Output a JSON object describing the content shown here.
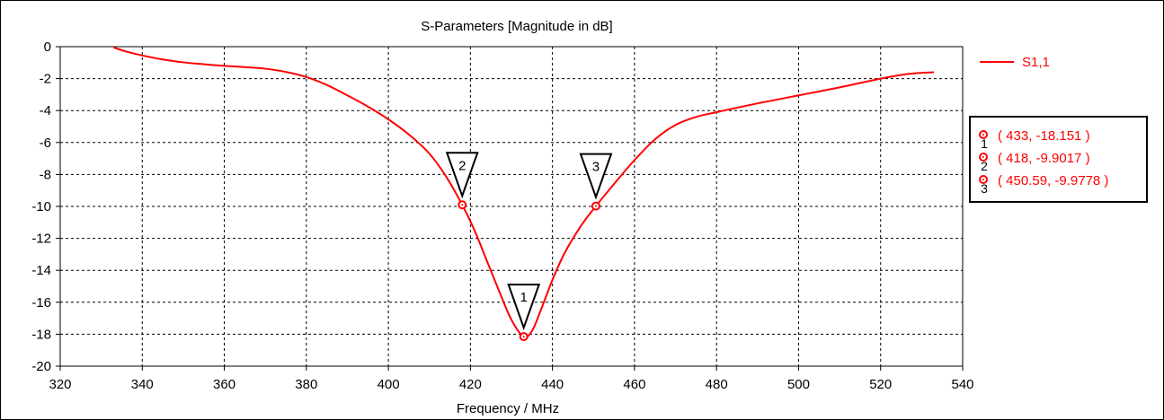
{
  "chart_data": {
    "type": "line",
    "title": "S-Parameters [Magnitude in dB]",
    "xlabel": "Frequency / MHz",
    "ylabel": "",
    "xlim": [
      320,
      540
    ],
    "ylim": [
      -20,
      0
    ],
    "x_ticks": [
      320,
      340,
      360,
      380,
      400,
      420,
      440,
      460,
      480,
      500,
      520,
      540
    ],
    "y_ticks": [
      0,
      -2,
      -4,
      -6,
      -8,
      -10,
      -12,
      -14,
      -16,
      -18,
      -20
    ],
    "grid": true,
    "legend_position": "right",
    "series": [
      {
        "name": "S1,1",
        "color": "#ff0000",
        "points": [
          [
            333,
            -0.05
          ],
          [
            336,
            -0.3
          ],
          [
            340,
            -0.55
          ],
          [
            345,
            -0.8
          ],
          [
            350,
            -0.98
          ],
          [
            355,
            -1.1
          ],
          [
            360,
            -1.2
          ],
          [
            365,
            -1.28
          ],
          [
            370,
            -1.38
          ],
          [
            375,
            -1.58
          ],
          [
            380,
            -1.9
          ],
          [
            385,
            -2.4
          ],
          [
            390,
            -3.05
          ],
          [
            395,
            -3.75
          ],
          [
            400,
            -4.55
          ],
          [
            405,
            -5.5
          ],
          [
            410,
            -6.7
          ],
          [
            414,
            -8.1
          ],
          [
            418,
            -9.9
          ],
          [
            421,
            -11.5
          ],
          [
            424,
            -13.4
          ],
          [
            427,
            -15.3
          ],
          [
            430,
            -17.1
          ],
          [
            433,
            -18.15
          ],
          [
            435,
            -17.8
          ],
          [
            437,
            -16.6
          ],
          [
            440,
            -14.6
          ],
          [
            443,
            -12.9
          ],
          [
            447,
            -11.2
          ],
          [
            450.59,
            -9.98
          ],
          [
            455,
            -8.6
          ],
          [
            460,
            -7.1
          ],
          [
            465,
            -5.8
          ],
          [
            470,
            -4.9
          ],
          [
            475,
            -4.4
          ],
          [
            480,
            -4.1
          ],
          [
            490,
            -3.55
          ],
          [
            500,
            -3.05
          ],
          [
            510,
            -2.55
          ],
          [
            520,
            -2.0
          ],
          [
            527,
            -1.7
          ],
          [
            533,
            -1.6
          ]
        ]
      }
    ],
    "markers": [
      {
        "id": "1",
        "x": 433,
        "y": -18.151,
        "label": "( 433, -18.151 )"
      },
      {
        "id": "2",
        "x": 418,
        "y": -9.9017,
        "label": "( 418, -9.9017 )"
      },
      {
        "id": "3",
        "x": 450.59,
        "y": -9.9778,
        "label": "( 450.59, -9.9778 )"
      }
    ]
  }
}
